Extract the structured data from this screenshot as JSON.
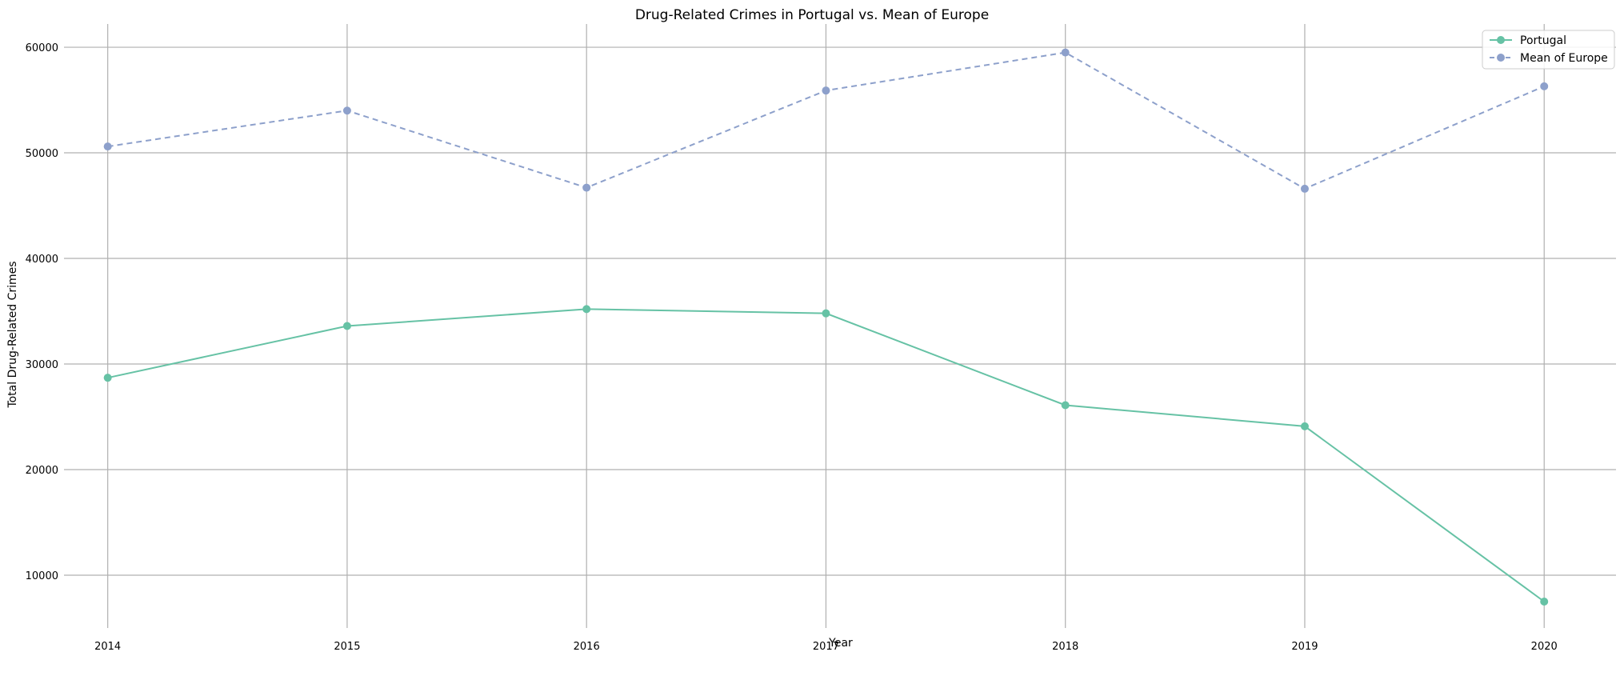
{
  "chart_data": {
    "type": "line",
    "title": "Drug-Related Crimes in Portugal vs. Mean of Europe",
    "xlabel": "Year",
    "ylabel": "Total Drug-Related Crimes",
    "x": [
      2014,
      2015,
      2016,
      2017,
      2018,
      2019,
      2020
    ],
    "xlim": [
      2013.55,
      2020.3
    ],
    "ylim": [
      5000,
      62200
    ],
    "yticks": [
      10000,
      20000,
      30000,
      40000,
      50000,
      60000
    ],
    "grid": true,
    "legend_position": "top-right",
    "series": [
      {
        "name": "Portugal",
        "values": [
          28700,
          33600,
          35200,
          34800,
          26100,
          24100,
          7500
        ],
        "color": "#66c2a5",
        "line_style": "solid",
        "marker": "circle"
      },
      {
        "name": "Mean of Europe",
        "values": [
          50600,
          54000,
          46700,
          55900,
          59500,
          46600,
          56300
        ],
        "color": "#8da0cb",
        "line_style": "dashed",
        "marker": "circle"
      }
    ]
  }
}
